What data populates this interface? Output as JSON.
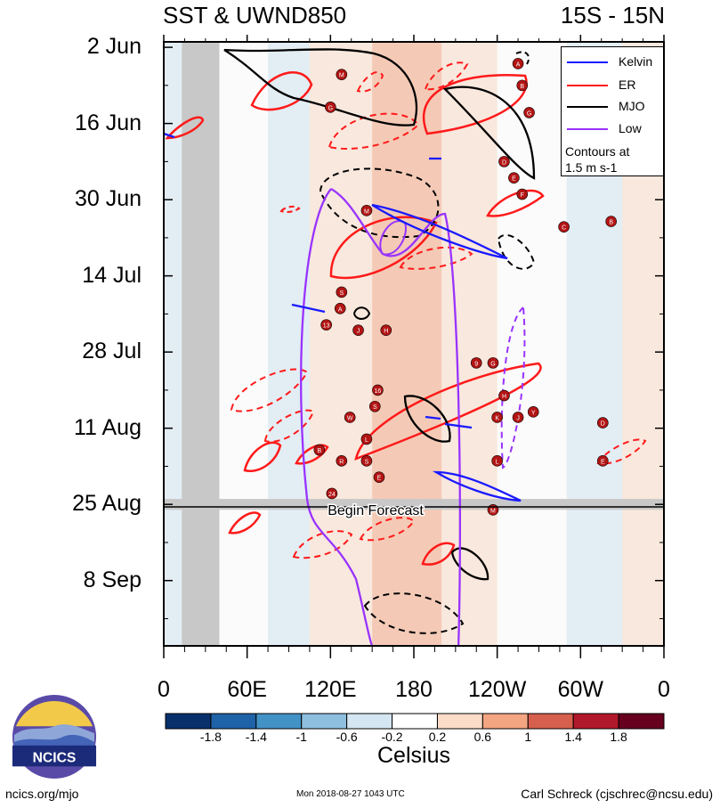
{
  "title_left": "SST & UWND850",
  "title_right": "15S - 15N",
  "colors": {
    "kelvin": "#1a1aff",
    "er": "#ff1a1a",
    "mjo": "#000000",
    "low": "#9933ff",
    "land": "#c8c8c8",
    "storm": "#b31414"
  },
  "legend": {
    "items": [
      {
        "label": "Kelvin",
        "color": "#1a1aff"
      },
      {
        "label": "ER",
        "color": "#ff1a1a"
      },
      {
        "label": "MJO",
        "color": "#000000"
      },
      {
        "label": "Low",
        "color": "#9933ff"
      }
    ],
    "note_line1": "Contours at",
    "note_line2": "1.5 m s-1"
  },
  "forecast_label": "Begin Forecast",
  "colorbar": {
    "label": "Celsius",
    "ticks": [
      "-1.8",
      "-1.4",
      "-1",
      "-0.6",
      "-0.2",
      "0.2",
      "0.6",
      "1",
      "1.4",
      "1.8"
    ],
    "colors": [
      "#08306b",
      "#1e62a8",
      "#4292c6",
      "#8fbfdf",
      "#d4e6f2",
      "#ffffff",
      "#fbdcc8",
      "#f3a582",
      "#d6604d",
      "#b2182b",
      "#67001f"
    ]
  },
  "footer": {
    "left": "ncics.org/mjo",
    "middle": "Mon 2018-08-27 1043 UTC",
    "right": "Carl Schreck (cjschrec@ncsu.edu)"
  },
  "logo_text": "NCICS",
  "chart_data": {
    "type": "heatmap",
    "title": "SST & UWND850",
    "subtitle": "15S - 15N",
    "x_ticks": [
      "0",
      "60E",
      "120E",
      "180",
      "120W",
      "60W",
      "0"
    ],
    "x_tick_values": [
      0,
      60,
      120,
      180,
      240,
      300,
      360
    ],
    "xlim": [
      0,
      360
    ],
    "y_ticks": [
      "2 Jun",
      "16 Jun",
      "30 Jun",
      "14 Jul",
      "28 Jul",
      "11 Aug",
      "25 Aug",
      "8 Sep"
    ],
    "y_tick_values": [
      0,
      14,
      28,
      42,
      56,
      70,
      84,
      98
    ],
    "ylim": [
      -1,
      110
    ],
    "forecast_start_day": 85,
    "land_bands": [
      {
        "lon_start": 13,
        "lon_end": 40,
        "day_start": -1,
        "day_end": 110
      },
      {
        "lon_start": 0,
        "lon_end": 360,
        "day_start": 83,
        "day_end": 85
      }
    ],
    "sst_anomaly_bands": [
      {
        "lon_start": 0,
        "lon_end": 13,
        "value": -0.6
      },
      {
        "lon_start": 40,
        "lon_end": 75,
        "value": -0.2
      },
      {
        "lon_start": 75,
        "lon_end": 105,
        "value": -0.6
      },
      {
        "lon_start": 105,
        "lon_end": 150,
        "value": 0.2
      },
      {
        "lon_start": 150,
        "lon_end": 200,
        "value": 0.6
      },
      {
        "lon_start": 200,
        "lon_end": 240,
        "value": 0.2
      },
      {
        "lon_start": 240,
        "lon_end": 290,
        "value": -0.2
      },
      {
        "lon_start": 290,
        "lon_end": 330,
        "value": -0.6
      },
      {
        "lon_start": 330,
        "lon_end": 360,
        "value": 0.2
      }
    ],
    "storm_labels": [
      {
        "text": "A",
        "lon": 255,
        "day": 3
      },
      {
        "text": "B",
        "lon": 258,
        "day": 7
      },
      {
        "text": "G",
        "lon": 263,
        "day": 12
      },
      {
        "text": "M",
        "lon": 128,
        "day": 5
      },
      {
        "text": "G",
        "lon": 120,
        "day": 11
      },
      {
        "text": "D",
        "lon": 245,
        "day": 21
      },
      {
        "text": "E",
        "lon": 252,
        "day": 24
      },
      {
        "text": "F",
        "lon": 258,
        "day": 27
      },
      {
        "text": "M",
        "lon": 146,
        "day": 30
      },
      {
        "text": "C",
        "lon": 288,
        "day": 33
      },
      {
        "text": "B",
        "lon": 322,
        "day": 32
      },
      {
        "text": "S",
        "lon": 128,
        "day": 45
      },
      {
        "text": "A",
        "lon": 127,
        "day": 48
      },
      {
        "text": "13",
        "lon": 117,
        "day": 51
      },
      {
        "text": "J",
        "lon": 140,
        "day": 52
      },
      {
        "text": "H",
        "lon": 160,
        "day": 52
      },
      {
        "text": "9",
        "lon": 225,
        "day": 58
      },
      {
        "text": "G",
        "lon": 237,
        "day": 58
      },
      {
        "text": "16",
        "lon": 154,
        "day": 63
      },
      {
        "text": "S",
        "lon": 152,
        "day": 66
      },
      {
        "text": "H",
        "lon": 245,
        "day": 64
      },
      {
        "text": "J",
        "lon": 255,
        "day": 68
      },
      {
        "text": "K",
        "lon": 240,
        "day": 68
      },
      {
        "text": "Y",
        "lon": 266,
        "day": 67
      },
      {
        "text": "D",
        "lon": 316,
        "day": 69
      },
      {
        "text": "W",
        "lon": 134,
        "day": 68
      },
      {
        "text": "L",
        "lon": 146,
        "day": 72
      },
      {
        "text": "B",
        "lon": 112,
        "day": 74
      },
      {
        "text": "R",
        "lon": 128,
        "day": 76
      },
      {
        "text": "S",
        "lon": 146,
        "day": 76
      },
      {
        "text": "E",
        "lon": 155,
        "day": 79
      },
      {
        "text": "L",
        "lon": 240,
        "day": 76
      },
      {
        "text": "E",
        "lon": 316,
        "day": 76
      },
      {
        "text": "24",
        "lon": 121,
        "day": 82
      },
      {
        "text": "M",
        "lon": 237,
        "day": 85
      }
    ]
  }
}
